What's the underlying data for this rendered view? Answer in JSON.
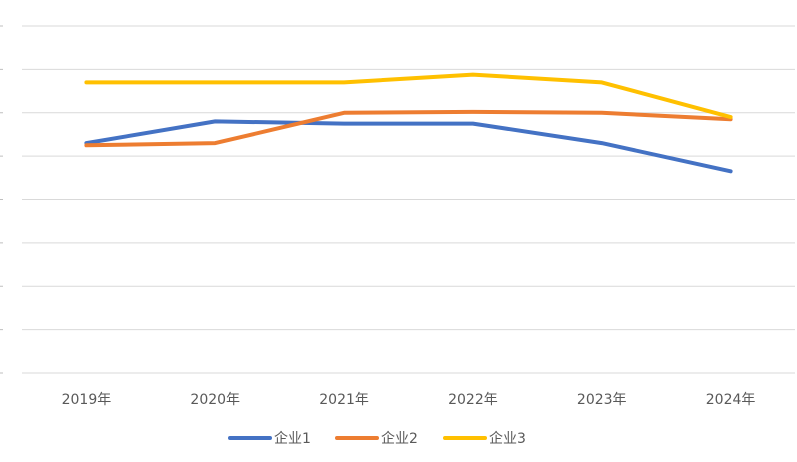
{
  "chart_data": {
    "type": "line",
    "title": "",
    "xlabel": "",
    "ylabel": "",
    "categories": [
      "2019年",
      "2020年",
      "2021年",
      "2022年",
      "2023年",
      "2024年"
    ],
    "ylim": [
      0,
      8
    ],
    "grid": true,
    "legend_position": "bottom",
    "series": [
      {
        "name": "企业1",
        "color": "#4472C4",
        "values": [
          5.3,
          5.8,
          5.75,
          5.75,
          5.3,
          4.65
        ]
      },
      {
        "name": "企业2",
        "color": "#ED7D31",
        "values": [
          5.25,
          5.3,
          6.0,
          6.02,
          6.0,
          5.85
        ]
      },
      {
        "name": "企业3",
        "color": "#FFC000",
        "values": [
          6.7,
          6.7,
          6.7,
          6.88,
          6.7,
          5.9
        ]
      }
    ]
  }
}
